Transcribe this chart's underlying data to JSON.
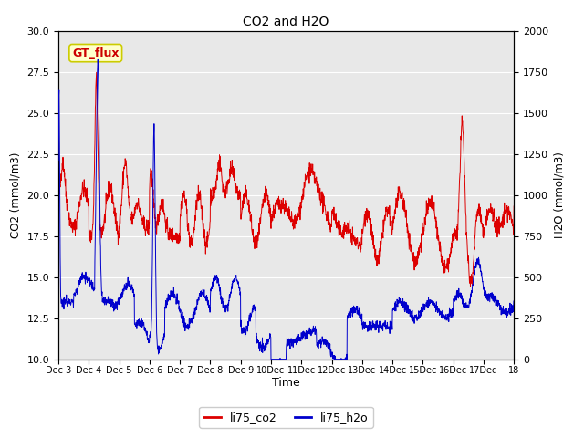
{
  "title": "CO2 and H2O",
  "xlabel": "Time",
  "ylabel_left": "CO2 (mmol/m3)",
  "ylabel_right": "H2O (mmol/m3)",
  "ylim_left": [
    10,
    30
  ],
  "ylim_right": [
    0,
    2000
  ],
  "annotation_text": "GT_flux",
  "annotation_bg": "#ffffcc",
  "annotation_border": "#cccc00",
  "annotation_text_color": "#cc0000",
  "co2_color": "#dd0000",
  "h2o_color": "#0000cc",
  "background_color": "#e8e8e8",
  "grid_color": "#ffffff",
  "legend_co2": "li75_co2",
  "legend_h2o": "li75_h2o",
  "n_points": 2000,
  "figsize": [
    6.4,
    4.8
  ],
  "dpi": 100
}
